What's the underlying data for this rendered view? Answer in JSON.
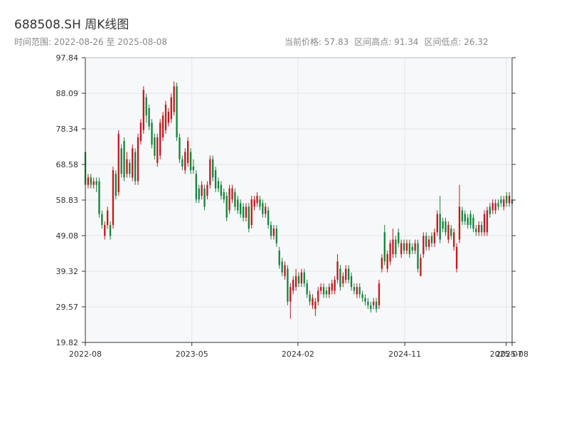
{
  "chart_data": {
    "type": "candlestick",
    "title": "688508.SH 周K线图",
    "subtitle": "时间范围: 2022-08-26 至 2025-08-08",
    "info": [
      "当前价格: 57.83",
      "区间高点: 91.34",
      "区间低点: 26.32"
    ],
    "up_color": "#c8161d",
    "down_color": "#13853a",
    "grid": true,
    "xlim": [
      "2022-08-26",
      "2025-08-08"
    ],
    "xticks": [
      {
        "value": "2022-08-26",
        "label": "2022-08"
      },
      {
        "value": "2023-05-22",
        "label": "2023-05"
      },
      {
        "value": "2024-02-14",
        "label": "2024-02"
      },
      {
        "value": "2024-11-10",
        "label": "2024-11"
      },
      {
        "value": "2025-07-24",
        "label": "2025-07"
      },
      {
        "value": "2025-08-08",
        "label": "2025-08"
      }
    ],
    "ylim": [
      19.82,
      97.84
    ],
    "yticks": [
      19.82,
      29.57,
      39.32,
      49.08,
      58.83,
      68.58,
      78.34,
      88.09,
      97.84
    ],
    "x": [
      "2022-08-26",
      "2022-09-02",
      "2022-09-09",
      "2022-09-16",
      "2022-09-23",
      "2022-09-30",
      "2022-10-07",
      "2022-10-14",
      "2022-10-21",
      "2022-10-28",
      "2022-11-04",
      "2022-11-11",
      "2022-11-18",
      "2022-11-25",
      "2022-12-02",
      "2022-12-09",
      "2022-12-16",
      "2022-12-23",
      "2022-12-30",
      "2023-01-06",
      "2023-01-13",
      "2023-01-20",
      "2023-01-27",
      "2023-02-03",
      "2023-02-10",
      "2023-02-17",
      "2023-02-24",
      "2023-03-03",
      "2023-03-10",
      "2023-03-17",
      "2023-03-24",
      "2023-03-31",
      "2023-04-07",
      "2023-04-14",
      "2023-04-21",
      "2023-04-28",
      "2023-05-05",
      "2023-05-12",
      "2023-05-19",
      "2023-05-26",
      "2023-06-02",
      "2023-06-09",
      "2023-06-16",
      "2023-06-23",
      "2023-06-30",
      "2023-07-07",
      "2023-07-14",
      "2023-07-21",
      "2023-07-28",
      "2023-08-04",
      "2023-08-11",
      "2023-08-18",
      "2023-08-25",
      "2023-09-01",
      "2023-09-08",
      "2023-09-15",
      "2023-09-22",
      "2023-09-29",
      "2023-10-06",
      "2023-10-13",
      "2023-10-20",
      "2023-10-27",
      "2023-11-03",
      "2023-11-10",
      "2023-11-17",
      "2023-11-24",
      "2023-12-01",
      "2023-12-08",
      "2023-12-15",
      "2023-12-22",
      "2023-12-29",
      "2024-01-05",
      "2024-01-12",
      "2024-01-19",
      "2024-01-26",
      "2024-02-02",
      "2024-02-09",
      "2024-02-16",
      "2024-02-23",
      "2024-03-01",
      "2024-03-08",
      "2024-03-15",
      "2024-03-22",
      "2024-03-29",
      "2024-04-05",
      "2024-04-12",
      "2024-04-19",
      "2024-04-26",
      "2024-05-03",
      "2024-05-10",
      "2024-05-17",
      "2024-05-24",
      "2024-05-31",
      "2024-06-07",
      "2024-06-14",
      "2024-06-21",
      "2024-06-28",
      "2024-07-05",
      "2024-07-12",
      "2024-07-19",
      "2024-07-26",
      "2024-08-02",
      "2024-08-09",
      "2024-08-16",
      "2024-08-23",
      "2024-08-30",
      "2024-09-06",
      "2024-09-13",
      "2024-09-20",
      "2024-09-27",
      "2024-10-04",
      "2024-10-11",
      "2024-10-18",
      "2024-10-25",
      "2024-11-01",
      "2024-11-08",
      "2024-11-15",
      "2024-11-22",
      "2024-11-29",
      "2024-12-06",
      "2024-12-13",
      "2024-12-20",
      "2024-12-27",
      "2025-01-03",
      "2025-01-10",
      "2025-01-17",
      "2025-01-24",
      "2025-01-31",
      "2025-02-07",
      "2025-02-14",
      "2025-02-21",
      "2025-02-28",
      "2025-03-07",
      "2025-03-14",
      "2025-03-21",
      "2025-03-28",
      "2025-04-04",
      "2025-04-11",
      "2025-04-18",
      "2025-04-25",
      "2025-05-02",
      "2025-05-09",
      "2025-05-16",
      "2025-05-23",
      "2025-05-30",
      "2025-06-06",
      "2025-06-13",
      "2025-06-20",
      "2025-06-27",
      "2025-07-04",
      "2025-07-11",
      "2025-07-18",
      "2025-07-25",
      "2025-08-01",
      "2025-08-08"
    ],
    "open": [
      72,
      63,
      65,
      63,
      64,
      64,
      55,
      49,
      52,
      52,
      52,
      66,
      61,
      73,
      75,
      66,
      69,
      65,
      72,
      64,
      75,
      78,
      87,
      84,
      80,
      76,
      69,
      71,
      76,
      78,
      80,
      81,
      83,
      90,
      76,
      70,
      67,
      69,
      72,
      68,
      66,
      62,
      60,
      62,
      60,
      63,
      70,
      67,
      64,
      63,
      61,
      60,
      56,
      59,
      61,
      59,
      58,
      57,
      54,
      57,
      52,
      57,
      58,
      59,
      58,
      55,
      56,
      52,
      49,
      51,
      45,
      42,
      38,
      40,
      31,
      34,
      35,
      38,
      36,
      39,
      36,
      33,
      30,
      29,
      31,
      34,
      35,
      34,
      33,
      34,
      34,
      37,
      40,
      36,
      37,
      40,
      38,
      35,
      33,
      35,
      33,
      32,
      31,
      30,
      30,
      31,
      30,
      40,
      50,
      40,
      42,
      44,
      48,
      50,
      44,
      47,
      45,
      47,
      46,
      45,
      47,
      38,
      44,
      49,
      46,
      49,
      47,
      50,
      55,
      53,
      53,
      48,
      51,
      46,
      40,
      48,
      56,
      55,
      54,
      55,
      54,
      51,
      50,
      52,
      50,
      50,
      57,
      56,
      56,
      58,
      59,
      57,
      60,
      58,
      59
    ],
    "high": [
      73,
      66,
      66,
      65,
      65,
      65,
      56,
      53,
      57,
      53,
      68,
      67,
      78,
      74,
      76,
      72,
      70,
      74,
      73,
      77,
      81,
      90,
      88,
      85,
      81,
      77,
      77,
      81,
      83,
      86,
      84,
      88,
      91.34,
      91,
      77,
      71,
      73,
      76,
      73,
      70,
      67,
      63,
      64,
      63,
      64,
      71,
      71,
      68,
      65,
      64,
      62,
      61,
      63,
      63,
      62,
      60,
      59,
      58,
      58,
      58,
      60,
      60,
      61,
      60,
      59,
      58,
      57,
      53,
      52,
      52,
      46,
      43,
      42,
      41,
      36,
      38,
      40,
      39,
      40,
      40,
      37,
      34,
      33,
      32,
      35,
      36,
      36,
      35,
      36,
      37,
      38,
      44,
      41,
      39,
      41,
      41,
      39,
      36,
      36,
      36,
      34,
      33,
      32,
      31,
      32,
      32,
      37,
      44,
      52,
      45,
      48,
      51,
      49,
      51,
      48,
      48,
      48,
      48,
      47,
      48,
      48,
      44,
      50,
      50,
      49,
      50,
      51,
      56,
      60,
      54,
      54,
      53,
      52,
      51,
      47,
      63,
      57,
      56,
      55,
      56,
      55,
      52,
      53,
      53,
      56,
      57,
      58,
      59,
      59,
      59,
      60,
      60,
      61,
      61,
      60
    ],
    "low": [
      62,
      62,
      62,
      62,
      61,
      54,
      51,
      48,
      51,
      48,
      51,
      59,
      60,
      65,
      64,
      65,
      65,
      64,
      63,
      63,
      74,
      77,
      80,
      78,
      73,
      70,
      68,
      70,
      75,
      77,
      79,
      80,
      82,
      75,
      69,
      67,
      66,
      68,
      66,
      66,
      58,
      58,
      59,
      56,
      59,
      62,
      64,
      61,
      61,
      59,
      58,
      53,
      55,
      58,
      56,
      55,
      54,
      53,
      53,
      50,
      51,
      56,
      57,
      56,
      54,
      54,
      51,
      48,
      48,
      46,
      40,
      38,
      37,
      30,
      26.32,
      33,
      34,
      35,
      35,
      35,
      32,
      30,
      29,
      27,
      30,
      33,
      32,
      32,
      32,
      33,
      33,
      36,
      34,
      35,
      36,
      36,
      34,
      33,
      32,
      32,
      31,
      30,
      29,
      28,
      29,
      28,
      29,
      39,
      41,
      39,
      41,
      43,
      43,
      46,
      43,
      44,
      44,
      43,
      44,
      44,
      39,
      38,
      43,
      45,
      45,
      46,
      46,
      49,
      47,
      50,
      49,
      47,
      48,
      45,
      39,
      47,
      52,
      52,
      51,
      51,
      50,
      49,
      49,
      49,
      49,
      49,
      54,
      55,
      55,
      56,
      57,
      56,
      57,
      57,
      57
    ],
    "close": [
      63,
      65,
      63,
      64,
      63,
      55,
      52,
      52,
      56,
      49,
      67,
      60,
      77,
      66,
      65,
      70,
      66,
      73,
      64,
      76,
      80,
      89,
      82,
      79,
      74,
      71,
      76,
      80,
      82,
      85,
      83,
      87,
      90,
      76,
      70,
      68,
      72,
      75,
      67,
      67,
      59,
      59,
      63,
      57,
      63,
      70,
      65,
      62,
      62,
      60,
      59,
      54,
      62,
      62,
      57,
      56,
      55,
      54,
      57,
      51,
      59,
      59,
      60,
      57,
      55,
      57,
      52,
      49,
      51,
      47,
      41,
      39,
      41,
      31,
      35,
      37,
      38,
      36,
      39,
      36,
      33,
      31,
      32,
      31,
      34,
      35,
      33,
      33,
      35,
      36,
      37,
      42,
      35,
      38,
      40,
      37,
      35,
      34,
      35,
      33,
      32,
      31,
      30,
      29,
      31,
      29,
      36,
      43,
      42,
      44,
      47,
      48,
      44,
      47,
      47,
      45,
      47,
      44,
      45,
      47,
      40,
      43,
      49,
      46,
      48,
      47,
      50,
      55,
      48,
      51,
      50,
      52,
      49,
      50,
      46,
      57,
      53,
      53,
      52,
      52,
      51,
      50,
      52,
      50,
      55,
      56,
      55,
      58,
      58,
      57,
      58,
      59,
      58,
      60,
      57.83
    ]
  }
}
